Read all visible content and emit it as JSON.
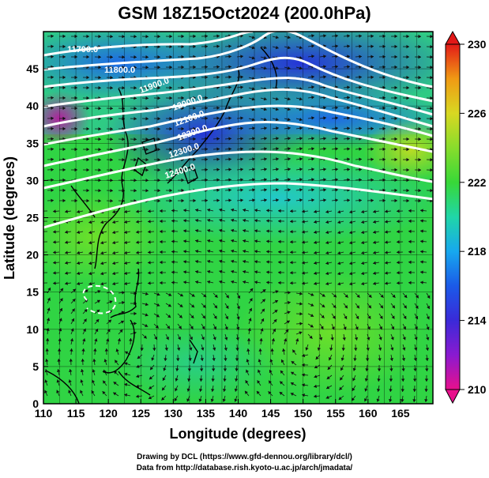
{
  "header": {
    "title": "GSM 18Z15Oct2024 (200.0hPa)"
  },
  "axes": {
    "x_label": "Longitude (degrees)",
    "y_label": "Latitude  (degrees)",
    "x_ticks": [
      "110",
      "115",
      "120",
      "125",
      "130",
      "135",
      "140",
      "145",
      "150",
      "155",
      "160",
      "165"
    ],
    "y_ticks": [
      "0",
      "5",
      "10",
      "15",
      "20",
      "25",
      "30",
      "35",
      "40",
      "45"
    ],
    "x_range": [
      110,
      170
    ],
    "y_range": [
      0,
      50
    ]
  },
  "contour_labels": [
    "11700.0",
    "11800.0",
    "11900.0",
    "12000.0",
    "12100.0",
    "12200.0",
    "12300.0",
    "12400.0"
  ],
  "colorbar": {
    "labels": [
      "210",
      "214",
      "218",
      "222",
      "226",
      "230"
    ],
    "min": 210,
    "max": 230,
    "colors": [
      "#d40095",
      "#4b2ad8",
      "#1c3fe8",
      "#19a0ee",
      "#26d59e",
      "#3fd830",
      "#9ede2c",
      "#e0d020",
      "#f08a10",
      "#e21818"
    ]
  },
  "footer": {
    "line1": "Drawing by DCL (https://www.gfd-dennou.org/library/dcl/)",
    "line2": "Data from http://database.rish.kyoto-u.ac.jp/arch/jmadata/"
  },
  "chart_data": {
    "type": "heatmap",
    "title": "GSM 18Z15Oct2024 (200.0hPa)",
    "xlabel": "Longitude (degrees)",
    "ylabel": "Latitude  (degrees)",
    "xlim": [
      110,
      170
    ],
    "ylim": [
      0,
      50
    ],
    "color_scale": {
      "min": 210,
      "max": 230,
      "labels": [
        210,
        214,
        218,
        222,
        226,
        230
      ]
    },
    "contour_levels": [
      11700,
      11800,
      11900,
      12000,
      12100,
      12200,
      12300,
      12400
    ],
    "grid": true,
    "overlay": "streamlines"
  }
}
